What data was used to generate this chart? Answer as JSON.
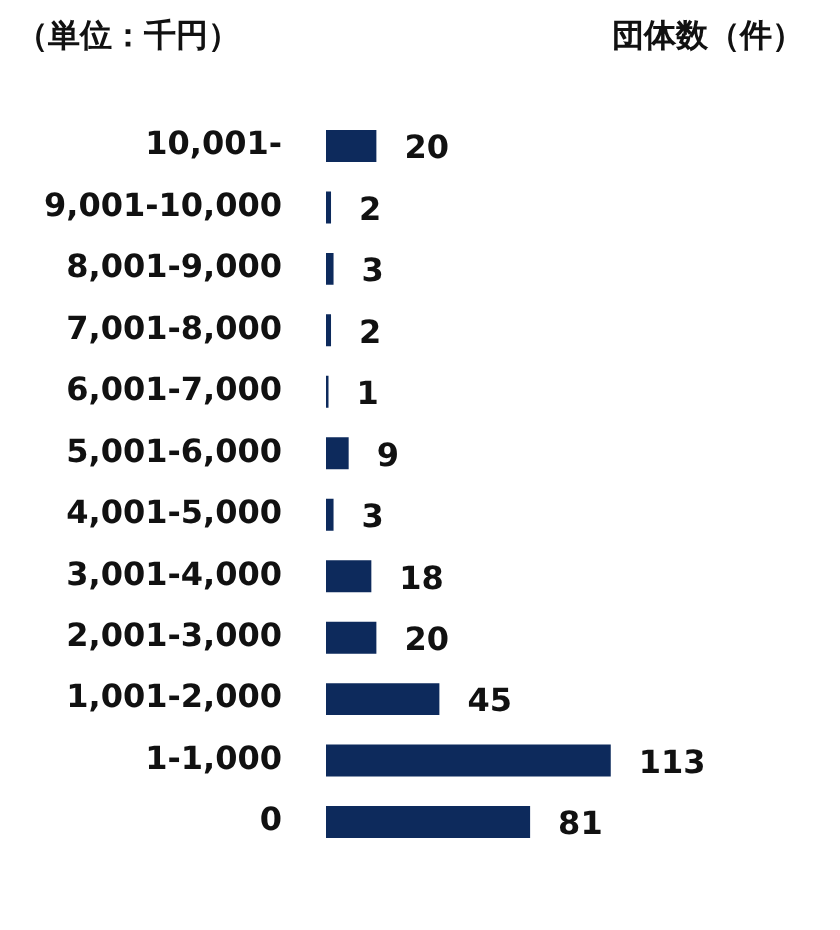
{
  "chart_data": {
    "type": "bar",
    "orientation": "horizontal",
    "ylabel": "（単位：千円）",
    "xlabel": "団体数（件）",
    "categories": [
      "10,001-",
      "9,001-10,000",
      "8,001-9,000",
      "7,001-8,000",
      "6,001-7,000",
      "5,001-6,000",
      "4,001-5,000",
      "3,001-4,000",
      "2,001-3,000",
      "1,001-2,000",
      "1-1,000",
      "0"
    ],
    "values": [
      20,
      2,
      3,
      2,
      1,
      9,
      3,
      18,
      20,
      45,
      113,
      81
    ],
    "color": "#0d2a5c",
    "data_labels": true
  }
}
